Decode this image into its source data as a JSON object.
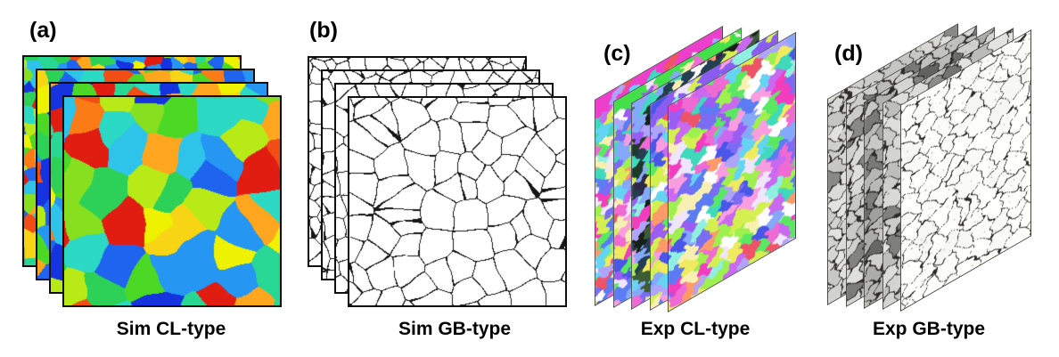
{
  "panels": [
    {
      "id": "a",
      "label": "(a)",
      "caption": "Sim CL-type",
      "layer_count": 4
    },
    {
      "id": "b",
      "label": "(b)",
      "caption": "Sim GB-type",
      "layer_count": 4
    },
    {
      "id": "c",
      "label": "(c)",
      "caption": "Exp CL-type",
      "layer_count": 5
    },
    {
      "id": "d",
      "label": "(d)",
      "caption": "Exp GB-type",
      "layer_count": 5
    }
  ],
  "colors": {
    "background": "#ffffff",
    "text": "#000000",
    "frame_dark": "#0f0f0f",
    "frame_thin_c": "#45454d",
    "frame_thin_d": "#3c3c3a",
    "gb_line": "#161616",
    "sim_cl_palette": [
      "#e11d12",
      "#f14d15",
      "#fb7b16",
      "#fda61e",
      "#f7d515",
      "#eef200",
      "#b8ea17",
      "#86e01f",
      "#4cd926",
      "#2ed157",
      "#29d795",
      "#2cd9c4",
      "#2ec4ea",
      "#2596f2",
      "#1f64ee",
      "#1633e0"
    ],
    "exp_cl_palette": [
      "#f23dbe",
      "#ef6ad3",
      "#fa9de0",
      "#c969f0",
      "#9a5cf2",
      "#7a6df4",
      "#5b7cf2",
      "#86a8fb",
      "#64d4f2",
      "#3fd9bb",
      "#5ae863",
      "#9ef04e",
      "#d4f050",
      "#f0ea5e",
      "#f7f0b0",
      "#efe6fd",
      "#fdfdfd",
      "#fc9a6a",
      "#ee5368",
      "#8fefe0",
      "#b0a4f8",
      "#4956e8"
    ],
    "exp_cl_dark": [
      "#1d3a2a",
      "#253f52",
      "#2f2847",
      "#3c5c33",
      "#16201a"
    ],
    "exp_cl_top_bands": [
      "#ee3ecc",
      "#44e04a",
      "",
      "#8a5cf0",
      ""
    ],
    "exp_gb_bases": [
      "#d4d3cf",
      "#cccbc5",
      "#bab8b1",
      "#cfccc6",
      "#fdfdfb"
    ],
    "exp_gb_line": "#2d2b28"
  }
}
